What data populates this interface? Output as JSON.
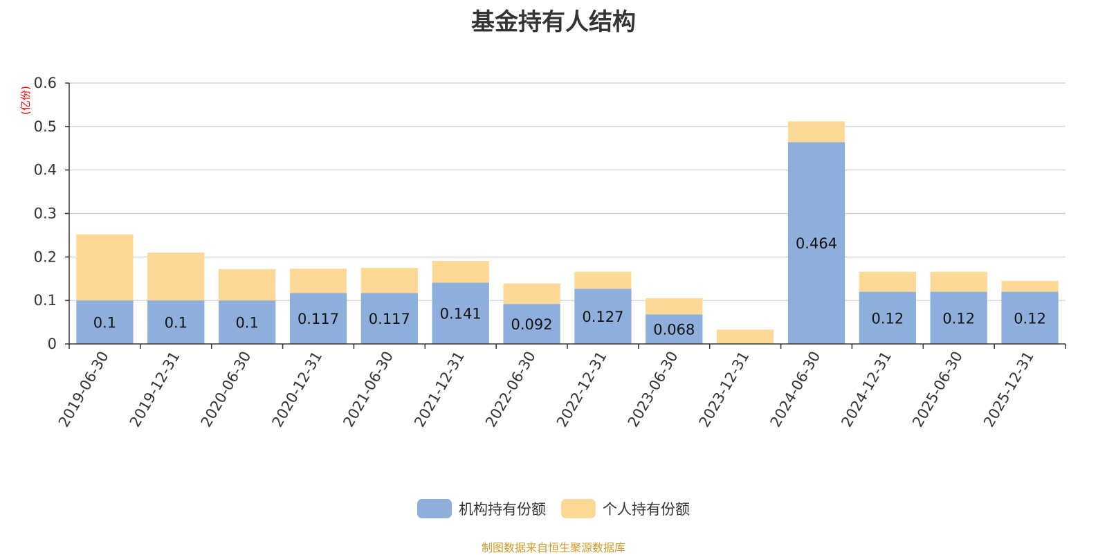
{
  "chart_data": {
    "type": "bar",
    "stacked": true,
    "title": "基金持有人结构",
    "ylabel": "(亿份)",
    "ylim": [
      0,
      0.6
    ],
    "yticks": [
      "0",
      "0.1",
      "0.2",
      "0.3",
      "0.4",
      "0.5",
      "0.6"
    ],
    "grid": true,
    "legend_position": "bottom",
    "categories": [
      "2019-06-30",
      "2019-12-31",
      "2020-06-30",
      "2020-12-31",
      "2021-06-30",
      "2021-12-31",
      "2022-06-30",
      "2022-12-31",
      "2023-06-30",
      "2023-12-31",
      "2024-06-30",
      "2024-12-31",
      "2025-06-30",
      "2025-12-31"
    ],
    "series": [
      {
        "name": "机构持有份额",
        "color": "#8eaedb",
        "values": [
          0.1,
          0.1,
          0.1,
          0.117,
          0.117,
          0.141,
          0.092,
          0.127,
          0.068,
          0,
          0.464,
          0.12,
          0.12,
          0.12
        ],
        "labels": [
          "0.1",
          "0.1",
          "0.1",
          "0.117",
          "0.117",
          "0.141",
          "0.092",
          "0.127",
          "0.068",
          "",
          "0.464",
          "0.12",
          "0.12",
          "0.12"
        ]
      },
      {
        "name": "个人持有份额",
        "color": "#fdd998",
        "values": [
          0.152,
          0.11,
          0.072,
          0.056,
          0.058,
          0.05,
          0.047,
          0.039,
          0.037,
          0.033,
          0.048,
          0.046,
          0.046,
          0.025
        ]
      }
    ]
  },
  "source_note": "制图数据来自恒生聚源数据库",
  "colors": {
    "axis_label_color": "#ff0000",
    "grid": "#cccccc",
    "axis": "#333333"
  }
}
